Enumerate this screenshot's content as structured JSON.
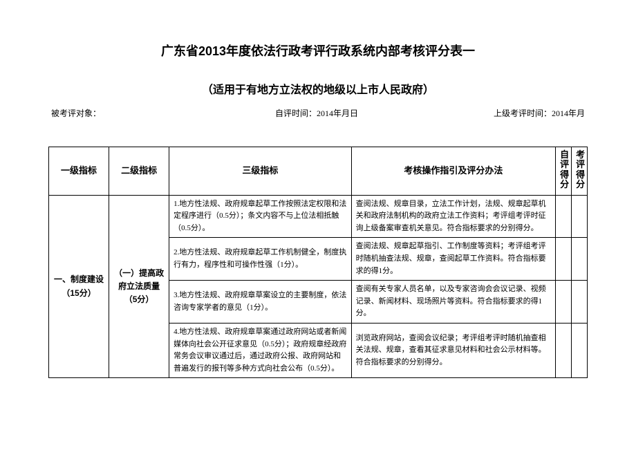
{
  "title": "广东省2013年度依法行政考评行政系统内部考核评分表一",
  "subtitle": "（适用于有地方立法权的地级以上市人民政府）",
  "meta": {
    "subject_label": "被考评对象：",
    "self_time_label": "自评时间：2014年月日",
    "upper_time_label": "上级考评时间：2014年月"
  },
  "headers": {
    "h1": "一级指标",
    "h2": "二级指标",
    "h3": "三级指标",
    "h4": "考核操作指引及评分办法",
    "h5": "自评得分",
    "h6": "考评得分"
  },
  "rows": {
    "lvl1": "一、制度建设（15分）",
    "lvl2": "（一）提高政府立法质量（5分）",
    "r1c3": "1.地方性法规、政府规章起草工作按照法定权限和法定程序进行（0.5分）；条文内容不与上位法相抵触（0.5分）。",
    "r1c4": "查阅法规、规章目录，立法工作计划，法规、规章起草机关和政府法制机构的政府立法工作资料；考评组考评时征询上级备案审查机关意见。符合指标要求的分别得分。",
    "r2c3": "2.地方性法规、政府规章起草工作机制健全，制度执行有力，程序性和可操作性强（1分）。",
    "r2c4": "查阅法规、规章起草指引、工作制度等资料；考评组考评时随机抽查法规、规章，查阅起草工作资料。符合指标要求的得1分。",
    "r3c3": "3.地方性法规、政府规章草案设立的主要制度，依法咨询专家学者的意见（1分）。",
    "r3c4": "查阅有关专家人员名单，以及专家咨询会会议记录、视频记录、新闻材料、现场照片等资料。符合指标要求的得1分。",
    "r4c3": "4.地方性法规、政府规章草案通过政府网站或者新闻媒体向社会公开征求意见（0.5分）；政府规章经政府常务会议审议通过后，通过政府公报、政府网站和普遍发行的报刊等多种方式向社会公布（0.5分）。",
    "r4c4": "浏览政府网站，查阅会议纪录；考评组考评时随机抽查相关法规、规章，查看其征求意见材料和社会公示材料等。符合指标要求的分别得分。"
  }
}
